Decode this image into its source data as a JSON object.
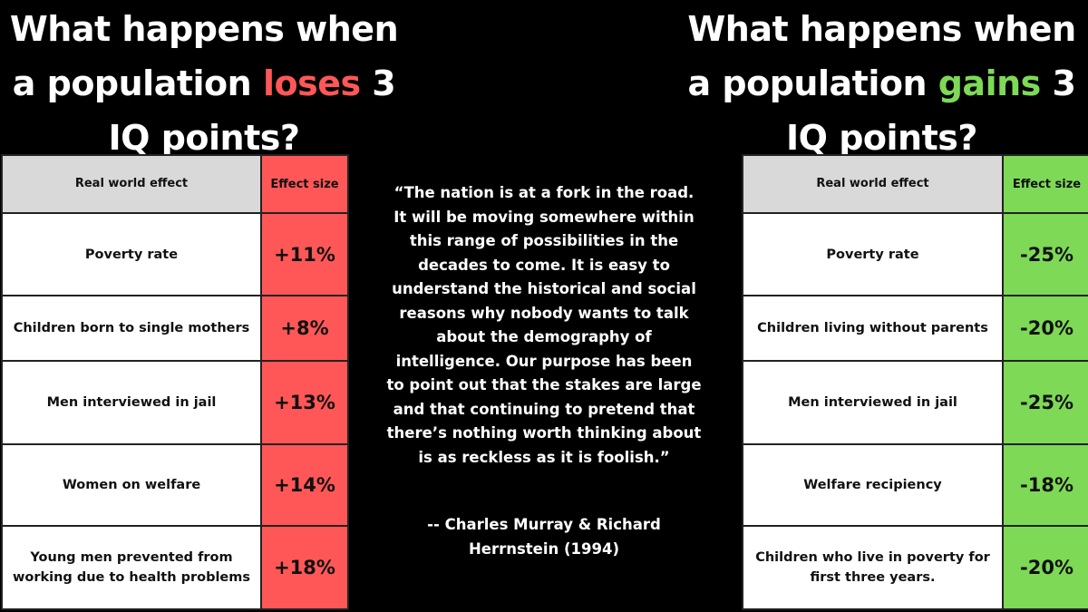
{
  "colors": {
    "loss": "#ff5757",
    "gain": "#7ed957",
    "header": "#d9d9d9",
    "background": "#000000"
  },
  "left": {
    "title_pre": "What happens when a population ",
    "title_key": "loses",
    "title_post": " 3 IQ points?",
    "header": {
      "effect": "Real world effect",
      "size": "Effect size"
    },
    "rows": [
      {
        "effect": "Poverty rate",
        "size": "+11%"
      },
      {
        "effect": "Children born to single mothers",
        "size": "+8%"
      },
      {
        "effect": "Men interviewed in jail",
        "size": "+13%"
      },
      {
        "effect": "Women on welfare",
        "size": "+14%"
      },
      {
        "effect": "Young men prevented from working due to health problems",
        "size": "+18%"
      }
    ]
  },
  "right": {
    "title_pre": "What happens when a population ",
    "title_key": "gains",
    "title_post": " 3 IQ points?",
    "header": {
      "effect": "Real world effect",
      "size": "Effect size"
    },
    "rows": [
      {
        "effect": "Poverty rate",
        "size": "-25%"
      },
      {
        "effect": "Children living without parents",
        "size": "-20%"
      },
      {
        "effect": "Men interviewed in jail",
        "size": "-25%"
      },
      {
        "effect": "Welfare recipiency",
        "size": "-18%"
      },
      {
        "effect": "Children who live in poverty for first three years.",
        "size": "-20%"
      }
    ]
  },
  "quote": {
    "text": "“The nation is at a fork in the road. It will be moving somewhere within this range of possibilities in the decades to come. It is easy to understand the historical and social reasons why nobody wants to talk about the demography of intelligence. Our purpose has been to point out that the stakes are large and that continuing to pretend that there’s nothing worth thinking about is as reckless as it is foolish.”",
    "attribution": "-- Charles Murray & Richard Herrnstein (1994)"
  }
}
